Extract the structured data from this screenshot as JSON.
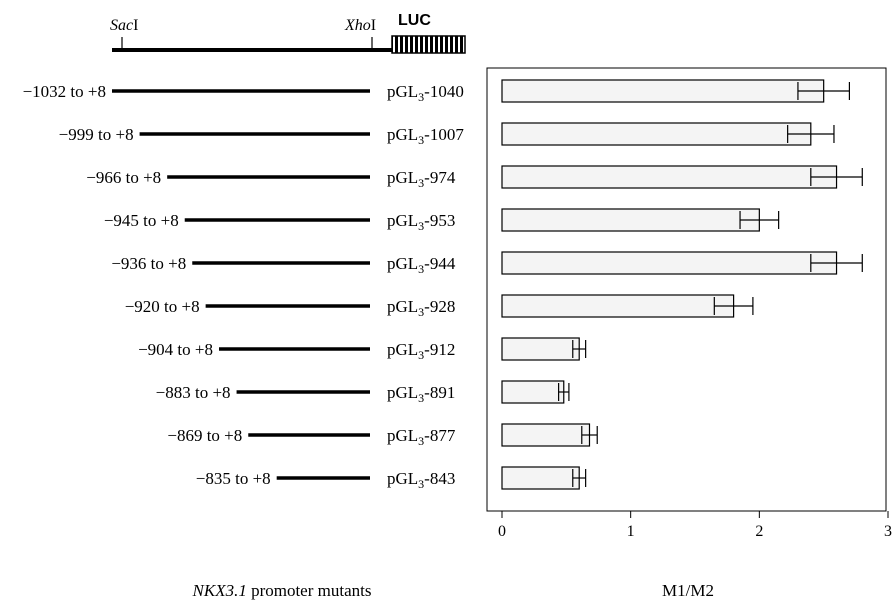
{
  "construct": {
    "site_left": "SacI",
    "site_right": "XhoI",
    "site_left_parts": [
      "Sac",
      "I"
    ],
    "site_right_parts": [
      "Xho",
      "I"
    ],
    "reporter": "LUC"
  },
  "left_title": "NKX3.1 promoter mutants",
  "left_title_parts": [
    "NKX3.1",
    " promoter mutants"
  ],
  "mutants": [
    {
      "range": "−1032 to +8",
      "plasmid": "pGL3-1040",
      "plasmid_parts": [
        "pGL",
        "3",
        "-1040"
      ],
      "start": -1032
    },
    {
      "range": "−999 to +8",
      "plasmid": "pGL3-1007",
      "plasmid_parts": [
        "pGL",
        "3",
        "-1007"
      ],
      "start": -999
    },
    {
      "range": "−966 to +8",
      "plasmid": "pGL3-974",
      "plasmid_parts": [
        "pGL",
        "3",
        "-974"
      ],
      "start": -966
    },
    {
      "range": "−945 to +8",
      "plasmid": "pGL3-953",
      "plasmid_parts": [
        "pGL",
        "3",
        "-953"
      ],
      "start": -945
    },
    {
      "range": "−936 to +8",
      "plasmid": "pGL3-944",
      "plasmid_parts": [
        "pGL",
        "3",
        "-944"
      ],
      "start": -936
    },
    {
      "range": "−920 to +8",
      "plasmid": "pGL3-928",
      "plasmid_parts": [
        "pGL",
        "3",
        "-928"
      ],
      "start": -920
    },
    {
      "range": "−904 to +8",
      "plasmid": "pGL3-912",
      "plasmid_parts": [
        "pGL",
        "3",
        "-912"
      ],
      "start": -904
    },
    {
      "range": "−883 to +8",
      "plasmid": "pGL3-891",
      "plasmid_parts": [
        "pGL",
        "3",
        "-891"
      ],
      "start": -883
    },
    {
      "range": "−869 to +8",
      "plasmid": "pGL3-877",
      "plasmid_parts": [
        "pGL",
        "3",
        "-877"
      ],
      "start": -869
    },
    {
      "range": "−835 to +8",
      "plasmid": "pGL3-843",
      "plasmid_parts": [
        "pGL",
        "3",
        "-843"
      ],
      "start": -835
    }
  ],
  "chart_data": {
    "type": "bar",
    "orientation": "horizontal",
    "categories": [
      "pGL3-1040",
      "pGL3-1007",
      "pGL3-974",
      "pGL3-953",
      "pGL3-944",
      "pGL3-928",
      "pGL3-912",
      "pGL3-891",
      "pGL3-877",
      "pGL3-843"
    ],
    "values": [
      2.5,
      2.4,
      2.6,
      2.0,
      2.6,
      1.8,
      0.6,
      0.48,
      0.68,
      0.6
    ],
    "errors": [
      0.2,
      0.18,
      0.2,
      0.15,
      0.2,
      0.15,
      0.05,
      0.04,
      0.06,
      0.05
    ],
    "xlabel": "M1/M2",
    "xlim": [
      0,
      3
    ],
    "xticks": [
      "0",
      "1",
      "2",
      "3"
    ],
    "grid": false,
    "bar_color": "#f4f4f4"
  }
}
